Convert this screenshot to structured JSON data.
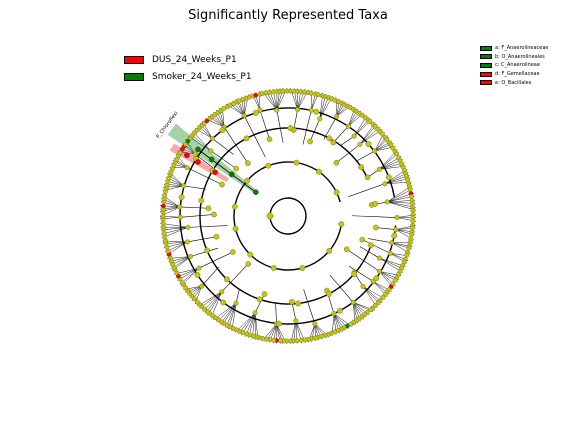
{
  "title": "Significantly Represented Taxa",
  "legend_main": [
    {
      "label": "DUS_24_Weeks_P1",
      "color": "#ff0000"
    },
    {
      "label": "Smoker_24_Weeks_P1",
      "color": "#008000"
    }
  ],
  "legend_side": [
    {
      "label": "a: F_Anaerolineaceae",
      "color": "#008000"
    },
    {
      "label": "b: O_Anaerolineales",
      "color": "#008000"
    },
    {
      "label": "c: C_Anaerolineae",
      "color": "#008000"
    },
    {
      "label": "d: F_Gemellaceae",
      "color": "#ff0000"
    },
    {
      "label": "e: O_Bacillales",
      "color": "#ff0000"
    }
  ],
  "sector_labels": {
    "p_chloroflexi": "P_Chloroflexi"
  },
  "colors": {
    "node_default": "#c8c800",
    "node_dus": "#ff0000",
    "node_smoker": "#008000",
    "edge": "#000000"
  }
}
